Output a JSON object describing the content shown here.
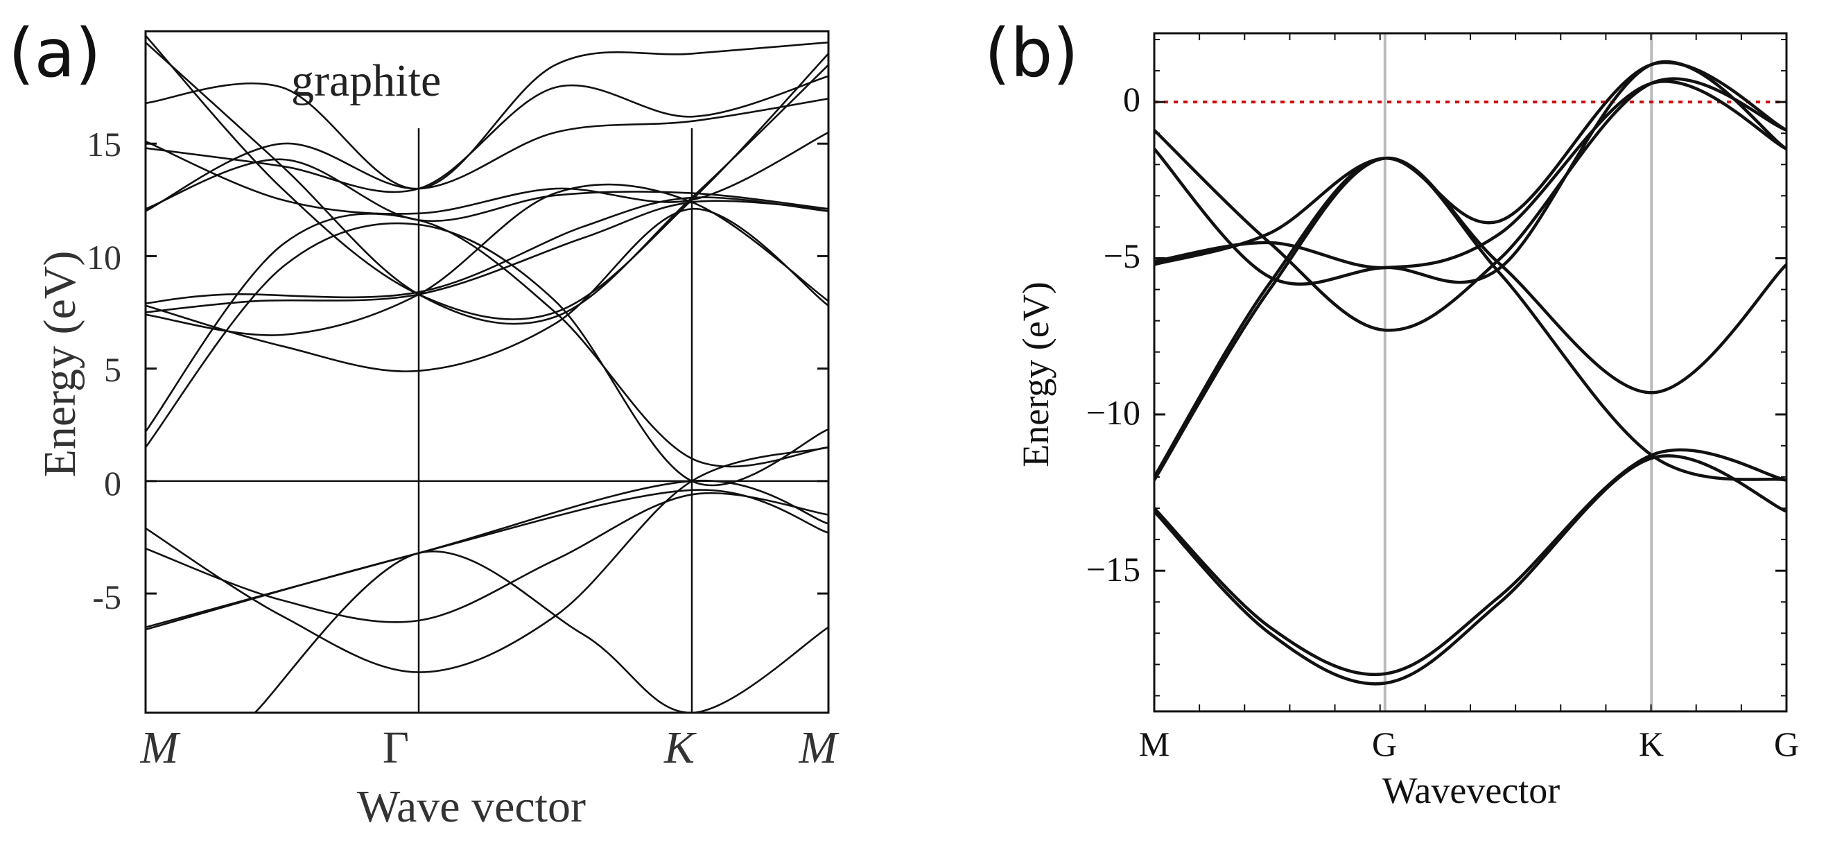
{
  "panels": [
    {
      "label": "(a)",
      "annotation": "graphite",
      "xlabel": "Wave vector",
      "ylabel": "Energy (eV)",
      "ticks": [
        "15",
        "10",
        "5",
        "0",
        "-5"
      ],
      "kpoints": [
        "M",
        "Γ",
        "K",
        "M"
      ]
    },
    {
      "label": "(b)",
      "xlabel": "Wavevector",
      "ylabel": "Energy (eV)",
      "ticks": [
        "0",
        "−5",
        "−10",
        "−15"
      ],
      "kpoints": [
        "M",
        "G",
        "K",
        "G"
      ]
    }
  ],
  "chart_data": [
    {
      "type": "line",
      "title": "",
      "annotation": "graphite",
      "xlabel": "Wave vector",
      "ylabel": "Energy (eV)",
      "ylim": [
        -10.3,
        20
      ],
      "yticks": [
        15,
        10,
        5,
        0,
        -5
      ],
      "kpath": [
        "M",
        "Γ",
        "K",
        "M"
      ],
      "kpos": [
        0,
        1,
        2,
        2.5
      ],
      "fermi_level": 0,
      "grid": false,
      "series": [
        {
          "x": [
            0,
            1,
            2,
            2.5
          ],
          "y": [
            -6.6,
            -3.2,
            -0.4,
            -2.3
          ]
        },
        {
          "x": [
            0,
            1,
            2,
            2.5
          ],
          "y": [
            -6.5,
            -3.2,
            0.0,
            -1.9
          ]
        },
        {
          "x": [
            0,
            0.5,
            1,
            1.5,
            2,
            2.5
          ],
          "y": [
            -3.0,
            -5.3,
            -6.2,
            -3.5,
            -0.6,
            -1.5
          ]
        },
        {
          "x": [
            0,
            0.5,
            1,
            1.5,
            2,
            2.5
          ],
          "y": [
            -2.1,
            -6.0,
            -8.5,
            -6.0,
            0.0,
            1.5
          ]
        },
        {
          "x": [
            0,
            0.5,
            1,
            1.5,
            2,
            2.5
          ],
          "y": [
            1.5,
            9.5,
            11.4,
            8.0,
            0.0,
            2.3
          ]
        },
        {
          "x": [
            0,
            0.5,
            1,
            1.5,
            2,
            2.5
          ],
          "y": [
            2.2,
            10.5,
            11.6,
            7.5,
            1.0,
            1.5
          ]
        },
        {
          "x": [
            0,
            0.4,
            1,
            1.6,
            2,
            2.5
          ],
          "y": [
            7.5,
            8.0,
            8.3,
            10.8,
            12.4,
            12.1
          ]
        },
        {
          "x": [
            0,
            0.3,
            1,
            1.6,
            2,
            2.5
          ],
          "y": [
            7.9,
            8.3,
            8.4,
            11.3,
            12.6,
            12.0
          ]
        },
        {
          "x": [
            0,
            0.5,
            1,
            1.5,
            2,
            2.5
          ],
          "y": [
            7.8,
            6.0,
            4.9,
            7.0,
            12.1,
            7.8
          ]
        },
        {
          "x": [
            0,
            0.5,
            1,
            1.5,
            2,
            2.5
          ],
          "y": [
            7.4,
            6.5,
            8.3,
            12.8,
            12.4,
            8.0
          ]
        },
        {
          "x": [
            0,
            0.5,
            1,
            1.5,
            2,
            2.5
          ],
          "y": [
            12.0,
            15.0,
            13.0,
            15.5,
            16.0,
            17.0
          ]
        },
        {
          "x": [
            0,
            0.5,
            1,
            1.5,
            2,
            2.5
          ],
          "y": [
            12.1,
            14.3,
            11.6,
            12.7,
            12.8,
            12.1
          ]
        },
        {
          "x": [
            0,
            0.5,
            1,
            1.5,
            2,
            2.5
          ],
          "y": [
            14.8,
            14.0,
            13.0,
            17.5,
            16.2,
            18.0
          ]
        },
        {
          "x": [
            0,
            0.5,
            1,
            1.5,
            2,
            2.5
          ],
          "y": [
            15.1,
            12.5,
            11.9,
            13.0,
            12.5,
            15.5
          ]
        },
        {
          "x": [
            0,
            0.5,
            1,
            1.5,
            2,
            2.5
          ],
          "y": [
            16.8,
            17.5,
            13.0,
            18.5,
            19.0,
            19.5
          ]
        },
        {
          "x": [
            0,
            0.5,
            1,
            1.5,
            2,
            2.5
          ],
          "y": [
            19.8,
            13.0,
            8.3,
            7.5,
            12.5,
            19.0
          ]
        },
        {
          "x": [
            0,
            0.5,
            1,
            1.5,
            2,
            2.5
          ],
          "y": [
            19.5,
            14.0,
            8.3,
            7.3,
            12.6,
            18.5
          ]
        },
        {
          "x": [
            0.4,
            1,
            1.6,
            2,
            2.5
          ],
          "y": [
            -10.3,
            -3.2,
            -6.8,
            -10.3,
            -6.5
          ]
        }
      ]
    },
    {
      "type": "line",
      "title": "",
      "xlabel": "Wavevector",
      "ylabel": "Energy (eV)",
      "ylim": [
        -19.5,
        2.2
      ],
      "yticks": [
        0,
        -5,
        -10,
        -15
      ],
      "kpath": [
        "M",
        "G",
        "K",
        "G"
      ],
      "kpos": [
        0,
        1,
        2.155,
        2.74
      ],
      "fermi_level": 0,
      "fermi_color": "#e00000",
      "kline_color": "#bbbbbb",
      "grid": false,
      "series": [
        {
          "x": [
            0,
            0.5,
            1,
            1.5,
            2.155,
            2.74
          ],
          "y": [
            -13.0,
            -16.8,
            -18.3,
            -15.8,
            -11.3,
            -12.1
          ]
        },
        {
          "x": [
            0,
            0.5,
            1,
            1.5,
            2.155,
            2.74
          ],
          "y": [
            -13.1,
            -17.0,
            -18.6,
            -16.0,
            -11.4,
            -13.1
          ]
        },
        {
          "x": [
            0,
            0.5,
            1,
            1.5,
            2.155,
            2.74
          ],
          "y": [
            -12.1,
            -6.0,
            -1.8,
            -5.2,
            -9.3,
            -5.2
          ]
        },
        {
          "x": [
            0,
            0.5,
            1,
            1.5,
            2.155,
            2.74
          ],
          "y": [
            -12.0,
            -5.8,
            -1.8,
            -5.5,
            -11.3,
            -12.1
          ]
        },
        {
          "x": [
            0,
            0.5,
            1,
            1.5,
            2.155,
            2.74
          ],
          "y": [
            -5.2,
            -4.2,
            -1.8,
            -3.8,
            1.2,
            -0.9
          ]
        },
        {
          "x": [
            0,
            0.5,
            1,
            1.5,
            2.155,
            2.74
          ],
          "y": [
            -5.1,
            -4.5,
            -5.3,
            -4.2,
            0.6,
            -1.5
          ]
        },
        {
          "x": [
            0,
            0.5,
            1,
            1.5,
            2.155,
            2.74
          ],
          "y": [
            -0.9,
            -4.5,
            -7.3,
            -5.0,
            0.6,
            -0.9
          ]
        },
        {
          "x": [
            0,
            0.5,
            1,
            1.5,
            2.155,
            2.74
          ],
          "y": [
            -1.5,
            -5.6,
            -5.3,
            -5.3,
            1.2,
            -1.5
          ]
        }
      ]
    }
  ]
}
